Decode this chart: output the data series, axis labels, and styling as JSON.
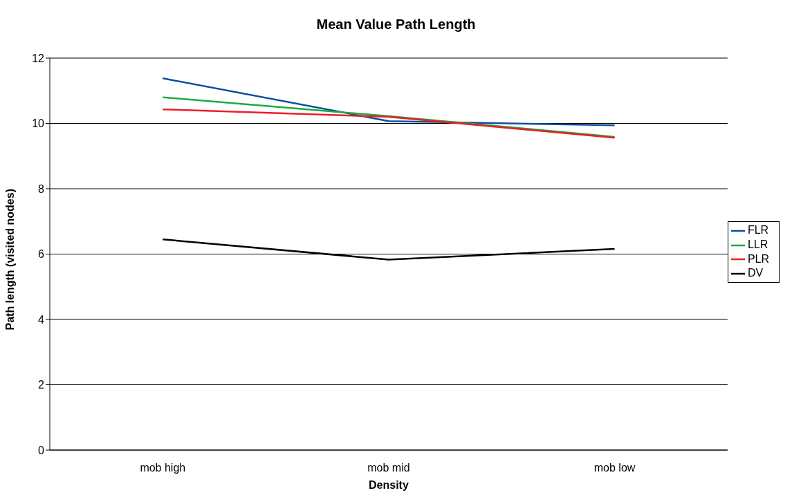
{
  "chart_data": {
    "type": "line",
    "title": "Mean Value Path Length",
    "xlabel": "Density",
    "ylabel": "Path length (visited nodes)",
    "categories": [
      "mob high",
      "mob mid",
      "mob low"
    ],
    "series": [
      {
        "name": "FLR",
        "color": "#0b4ea2",
        "values": [
          11.38,
          10.07,
          9.94
        ]
      },
      {
        "name": "LLR",
        "color": "#1aab40",
        "values": [
          10.8,
          10.22,
          9.59
        ]
      },
      {
        "name": "PLR",
        "color": "#ee1c25",
        "values": [
          10.43,
          10.2,
          9.56
        ]
      },
      {
        "name": "DV",
        "color": "#000000",
        "values": [
          6.45,
          5.83,
          6.16
        ]
      }
    ],
    "ylim": [
      0,
      12
    ],
    "yticks": [
      0,
      2,
      4,
      6,
      8,
      10,
      12
    ],
    "grid": "y",
    "legend": "right",
    "marker": "none",
    "line_style": "solid"
  }
}
